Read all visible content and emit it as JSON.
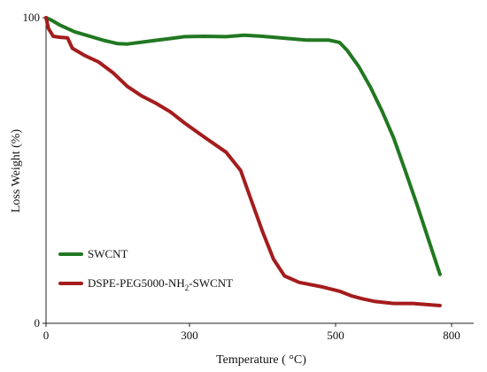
{
  "chart_data": {
    "type": "line",
    "title": "",
    "xlabel": "Temperature ( °C)",
    "ylabel": "Loss Weight (%)",
    "xlim": [
      0,
      800
    ],
    "ylim": [
      0,
      100
    ],
    "x_ticks": [
      {
        "value": 0,
        "label": "0"
      },
      {
        "value": 300,
        "label": "300"
      },
      {
        "value": 500,
        "label": "500"
      },
      {
        "value": 800,
        "label": "800"
      }
    ],
    "y_ticks": [
      {
        "value": 0,
        "label": "0"
      },
      {
        "value": 100,
        "label": "100"
      }
    ],
    "grid": false,
    "legend_position": "bottom-left",
    "series": [
      {
        "name": "SWCNT",
        "color": "#217821",
        "points": [
          [
            0,
            100
          ],
          [
            10,
            99.3
          ],
          [
            30,
            97.5
          ],
          [
            60,
            95.4
          ],
          [
            90,
            94
          ],
          [
            120,
            92.6
          ],
          [
            150,
            91.5
          ],
          [
            170,
            91.4
          ],
          [
            200,
            92
          ],
          [
            230,
            92.6
          ],
          [
            260,
            93.2
          ],
          [
            290,
            93.8
          ],
          [
            320,
            93.9
          ],
          [
            350,
            93.8
          ],
          [
            375,
            94.3
          ],
          [
            400,
            93.9
          ],
          [
            430,
            93.3
          ],
          [
            460,
            92.7
          ],
          [
            490,
            92.7
          ],
          [
            510,
            91.9
          ],
          [
            530,
            89.3
          ],
          [
            560,
            84
          ],
          [
            590,
            77.3
          ],
          [
            620,
            69.5
          ],
          [
            650,
            60.7
          ],
          [
            680,
            50
          ],
          [
            710,
            39
          ],
          [
            740,
            27.5
          ],
          [
            770,
            16
          ]
        ]
      },
      {
        "name": "DSPE-PEG5000-NH2-SWCNT",
        "color": "#a51c1c",
        "points": [
          [
            0,
            100
          ],
          [
            5,
            96.5
          ],
          [
            15,
            93.9
          ],
          [
            30,
            93.6
          ],
          [
            45,
            93.4
          ],
          [
            55,
            90
          ],
          [
            80,
            87.7
          ],
          [
            110,
            85.5
          ],
          [
            140,
            82
          ],
          [
            170,
            77.5
          ],
          [
            200,
            74.4
          ],
          [
            230,
            72
          ],
          [
            260,
            69.2
          ],
          [
            290,
            65.5
          ],
          [
            320,
            61
          ],
          [
            350,
            56
          ],
          [
            370,
            50
          ],
          [
            385,
            40
          ],
          [
            400,
            30
          ],
          [
            415,
            21
          ],
          [
            430,
            15.5
          ],
          [
            450,
            13.4
          ],
          [
            480,
            12
          ],
          [
            510,
            10.5
          ],
          [
            540,
            9
          ],
          [
            570,
            8
          ],
          [
            600,
            7.2
          ],
          [
            650,
            6.5
          ],
          [
            700,
            6.5
          ],
          [
            740,
            6.1
          ],
          [
            770,
            5.8
          ]
        ]
      }
    ],
    "legend": [
      {
        "text_before": "SWCNT",
        "subscript": "",
        "text_after": "",
        "color": "#217821"
      },
      {
        "text_before": "DSPE-PEG5000-NH",
        "subscript": "2",
        "text_after": "-SWCNT",
        "color": "#a51c1c"
      }
    ]
  }
}
